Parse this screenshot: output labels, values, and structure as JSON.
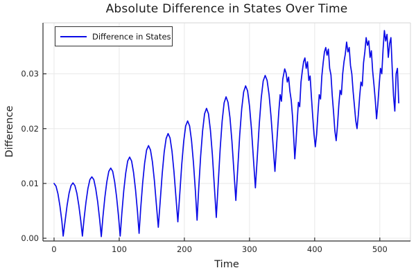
{
  "chart_data": {
    "type": "line",
    "title": "Absolute Difference in States Over Time",
    "xlabel": "Time",
    "ylabel": "Difference",
    "grid": true,
    "legend_position": "top-left",
    "xlim": [
      -17,
      547
    ],
    "ylim": [
      -0.0005,
      0.0393
    ],
    "xticks": {
      "values": [
        0,
        100,
        200,
        300,
        400,
        500
      ],
      "labels": [
        "0",
        "100",
        "200",
        "300",
        "400",
        "500"
      ]
    },
    "yticks": {
      "values": [
        0,
        0.01,
        0.02,
        0.03
      ],
      "labels": [
        "0.00",
        "0.01",
        "0.02",
        "0.03"
      ]
    },
    "series": [
      {
        "name": "Difference in States",
        "color": "#0a0ae6",
        "points": [
          [
            0,
            0.01
          ],
          [
            3,
            0.0095
          ],
          [
            6,
            0.0081
          ],
          [
            9,
            0.0059
          ],
          [
            12,
            0.0031
          ],
          [
            14,
            0.0004
          ],
          [
            17,
            0.0032
          ],
          [
            20,
            0.006
          ],
          [
            23,
            0.0082
          ],
          [
            26,
            0.0096
          ],
          [
            29,
            0.0101
          ],
          [
            32,
            0.0096
          ],
          [
            35,
            0.0082
          ],
          [
            38,
            0.006
          ],
          [
            41,
            0.0032
          ],
          [
            43.5,
            0.0004
          ],
          [
            46,
            0.0035
          ],
          [
            49,
            0.0066
          ],
          [
            52,
            0.0091
          ],
          [
            55,
            0.0107
          ],
          [
            58,
            0.0112
          ],
          [
            61,
            0.0107
          ],
          [
            64,
            0.009
          ],
          [
            67,
            0.0066
          ],
          [
            70,
            0.0034
          ],
          [
            72.5,
            0.0003
          ],
          [
            75,
            0.0039
          ],
          [
            78,
            0.0075
          ],
          [
            81,
            0.0103
          ],
          [
            84,
            0.0122
          ],
          [
            87,
            0.0128
          ],
          [
            90,
            0.0122
          ],
          [
            93,
            0.0103
          ],
          [
            96,
            0.0075
          ],
          [
            99,
            0.0039
          ],
          [
            101.5,
            0.0004
          ],
          [
            104,
            0.0045
          ],
          [
            107,
            0.0087
          ],
          [
            110,
            0.0119
          ],
          [
            113,
            0.0141
          ],
          [
            116,
            0.0148
          ],
          [
            119,
            0.0141
          ],
          [
            122,
            0.012
          ],
          [
            125,
            0.0089
          ],
          [
            128,
            0.0049
          ],
          [
            130.5,
            0.0009
          ],
          [
            133,
            0.0055
          ],
          [
            136,
            0.0101
          ],
          [
            139,
            0.0137
          ],
          [
            142,
            0.0161
          ],
          [
            145,
            0.0169
          ],
          [
            148,
            0.0161
          ],
          [
            151,
            0.0139
          ],
          [
            154,
            0.0105
          ],
          [
            157,
            0.0062
          ],
          [
            160,
            0.002
          ],
          [
            163,
            0.0069
          ],
          [
            166,
            0.0118
          ],
          [
            169,
            0.0157
          ],
          [
            172,
            0.0182
          ],
          [
            175,
            0.0191
          ],
          [
            178,
            0.0183
          ],
          [
            181,
            0.0159
          ],
          [
            184,
            0.0122
          ],
          [
            187,
            0.0076
          ],
          [
            190,
            0.003
          ],
          [
            193,
            0.0082
          ],
          [
            196,
            0.0135
          ],
          [
            199,
            0.0177
          ],
          [
            202,
            0.0205
          ],
          [
            205,
            0.0214
          ],
          [
            208,
            0.0205
          ],
          [
            211,
            0.0178
          ],
          [
            214,
            0.0137
          ],
          [
            217,
            0.0085
          ],
          [
            219.5,
            0.0033
          ],
          [
            222,
            0.0091
          ],
          [
            225,
            0.015
          ],
          [
            228,
            0.0196
          ],
          [
            231,
            0.0227
          ],
          [
            234,
            0.0237
          ],
          [
            237,
            0.0227
          ],
          [
            240,
            0.0197
          ],
          [
            243,
            0.0152
          ],
          [
            246,
            0.0095
          ],
          [
            249,
            0.0038
          ],
          [
            252,
            0.0101
          ],
          [
            255,
            0.0164
          ],
          [
            258,
            0.0214
          ],
          [
            261,
            0.0247
          ],
          [
            264,
            0.0258
          ],
          [
            267,
            0.0248
          ],
          [
            270,
            0.022
          ],
          [
            273,
            0.0177
          ],
          [
            276,
            0.0123
          ],
          [
            279,
            0.0069
          ],
          [
            282,
            0.0129
          ],
          [
            285,
            0.0189
          ],
          [
            288,
            0.0236
          ],
          [
            291,
            0.0267
          ],
          [
            294,
            0.0278
          ],
          [
            297,
            0.0269
          ],
          [
            300,
            0.0241
          ],
          [
            303,
            0.0199
          ],
          [
            306,
            0.0145
          ],
          [
            309,
            0.0092
          ],
          [
            312,
            0.015
          ],
          [
            315,
            0.0209
          ],
          [
            318,
            0.0256
          ],
          [
            321,
            0.0287
          ],
          [
            324,
            0.0297
          ],
          [
            327,
            0.0288
          ],
          [
            330,
            0.0262
          ],
          [
            333,
            0.0222
          ],
          [
            336,
            0.0172
          ],
          [
            339,
            0.0122
          ],
          [
            342,
            0.0178
          ],
          [
            345,
            0.0232
          ],
          [
            347,
            0.0262
          ],
          [
            349,
            0.025
          ],
          [
            351,
            0.029
          ],
          [
            354,
            0.0309
          ],
          [
            356,
            0.0302
          ],
          [
            358,
            0.0285
          ],
          [
            360,
            0.0294
          ],
          [
            362,
            0.0268
          ],
          [
            364,
            0.0252
          ],
          [
            366,
            0.0222
          ],
          [
            368,
            0.018
          ],
          [
            369.5,
            0.0145
          ],
          [
            371,
            0.017
          ],
          [
            373,
            0.021
          ],
          [
            375,
            0.0248
          ],
          [
            377,
            0.024
          ],
          [
            379,
            0.0285
          ],
          [
            381,
            0.0305
          ],
          [
            383,
            0.0322
          ],
          [
            385,
            0.0329
          ],
          [
            387,
            0.031
          ],
          [
            389,
            0.0322
          ],
          [
            391,
            0.0288
          ],
          [
            393,
            0.0296
          ],
          [
            395,
            0.0258
          ],
          [
            397,
            0.0222
          ],
          [
            399,
            0.019
          ],
          [
            401,
            0.0167
          ],
          [
            403,
            0.019
          ],
          [
            405,
            0.0228
          ],
          [
            407,
            0.0262
          ],
          [
            409,
            0.0254
          ],
          [
            411,
            0.0296
          ],
          [
            413,
            0.032
          ],
          [
            415,
            0.034
          ],
          [
            417,
            0.0348
          ],
          [
            419,
            0.0334
          ],
          [
            421,
            0.0345
          ],
          [
            423,
            0.031
          ],
          [
            425,
            0.0298
          ],
          [
            427,
            0.026
          ],
          [
            429,
            0.023
          ],
          [
            431,
            0.0196
          ],
          [
            433,
            0.0178
          ],
          [
            435,
            0.0205
          ],
          [
            437,
            0.0242
          ],
          [
            439,
            0.027
          ],
          [
            441,
            0.0262
          ],
          [
            443,
            0.03
          ],
          [
            445,
            0.0322
          ],
          [
            447,
            0.0336
          ],
          [
            449,
            0.0358
          ],
          [
            451,
            0.034
          ],
          [
            453,
            0.0348
          ],
          [
            455,
            0.0315
          ],
          [
            457,
            0.03
          ],
          [
            459,
            0.0268
          ],
          [
            461,
            0.0242
          ],
          [
            463,
            0.0215
          ],
          [
            465,
            0.02
          ],
          [
            467,
            0.0225
          ],
          [
            469,
            0.0258
          ],
          [
            471,
            0.0285
          ],
          [
            473,
            0.0278
          ],
          [
            475,
            0.032
          ],
          [
            477,
            0.034
          ],
          [
            479,
            0.0366
          ],
          [
            481,
            0.0352
          ],
          [
            483,
            0.036
          ],
          [
            485,
            0.033
          ],
          [
            487,
            0.0342
          ],
          [
            489,
            0.0305
          ],
          [
            491,
            0.028
          ],
          [
            493,
            0.0252
          ],
          [
            495,
            0.0218
          ],
          [
            497,
            0.0245
          ],
          [
            499,
            0.028
          ],
          [
            501,
            0.031
          ],
          [
            503,
            0.03
          ],
          [
            505,
            0.0345
          ],
          [
            507,
            0.0379
          ],
          [
            509,
            0.036
          ],
          [
            511,
            0.0372
          ],
          [
            513,
            0.033
          ],
          [
            515,
            0.0355
          ],
          [
            517,
            0.0366
          ],
          [
            519,
            0.031
          ],
          [
            521,
            0.026
          ],
          [
            523,
            0.0232
          ],
          [
            525,
            0.03
          ],
          [
            527,
            0.031
          ],
          [
            529,
            0.0247
          ]
        ]
      }
    ]
  },
  "colors": {
    "series": "#0a0ae6",
    "grid": "#e8e8e8",
    "frame_light": "#d6d6d6",
    "spine": "#2a2a2a",
    "tick_text": "#262626"
  }
}
